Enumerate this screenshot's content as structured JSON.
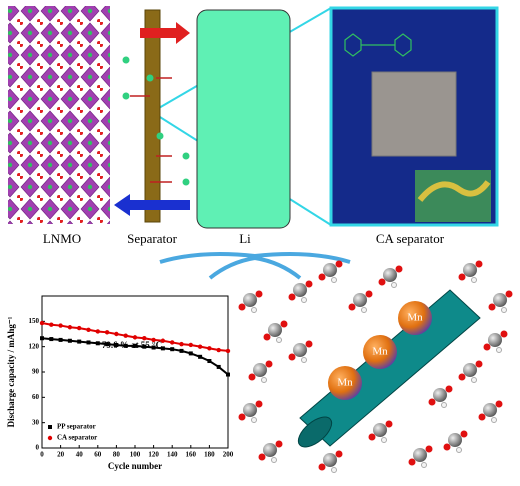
{
  "labels": {
    "lnmo": "LNMO",
    "separator": "Separator",
    "li": "Li",
    "ca_separator": "CA separator"
  },
  "mn_labels": [
    "Mn",
    "Mn",
    "Mn"
  ],
  "chart_data": {
    "type": "line",
    "x_label": "Cycle number",
    "y_label": "Discharge capacity / mAhg⁻¹",
    "annotation": "79.6 % at 55 °C",
    "x": [
      0,
      10,
      20,
      30,
      40,
      50,
      60,
      70,
      80,
      90,
      100,
      110,
      120,
      130,
      140,
      150,
      160,
      170,
      180,
      190,
      200
    ],
    "series": [
      {
        "name": "PP separator",
        "color": "#000000",
        "marker": "square",
        "values": [
          130,
          129,
          128,
          127,
          126,
          125,
          124,
          123,
          122,
          121,
          121,
          120,
          119,
          118,
          117,
          115,
          112,
          108,
          103,
          96,
          87
        ]
      },
      {
        "name": "CA separator",
        "color": "#e00000",
        "marker": "circle",
        "values": [
          148,
          146,
          145,
          143,
          142,
          140,
          138,
          137,
          135,
          133,
          131,
          130,
          128,
          127,
          125,
          123,
          122,
          120,
          118,
          116,
          115
        ]
      }
    ],
    "xlim": [
      0,
      200
    ],
    "xticks": [
      0,
      20,
      40,
      60,
      80,
      100,
      120,
      140,
      160,
      180,
      200
    ],
    "ylim": [
      0,
      180
    ],
    "yticks": [
      0,
      30,
      60,
      90,
      120,
      150
    ],
    "legend": "lower left"
  }
}
